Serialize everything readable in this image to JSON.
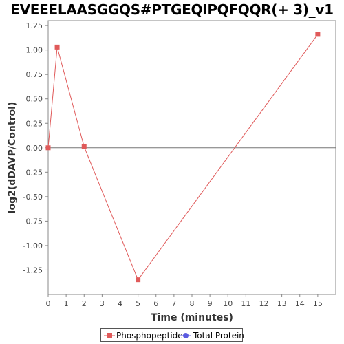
{
  "chart_data": {
    "type": "line",
    "title": "EVEEELAASGGQS#PTGEQIPQFQQR(+ 3)_v1",
    "xlabel": "Time (minutes)",
    "ylabel": "log2(dDAVP/Control)",
    "xlim": [
      0,
      16
    ],
    "ylim": [
      -1.5,
      1.3
    ],
    "x_ticks": [
      "0",
      "1",
      "2",
      "3",
      "4",
      "5",
      "6",
      "7",
      "8",
      "9",
      "10",
      "11",
      "12",
      "13",
      "14",
      "15"
    ],
    "y_ticks": [
      "1.25",
      "1.00",
      "0.75",
      "0.50",
      "0.25",
      "0.00",
      "-0.25",
      "-0.50",
      "-0.75",
      "-1.00",
      "-1.25"
    ],
    "grid": false,
    "zero_line": true,
    "series": [
      {
        "name": "Phosphopeptide",
        "color": "#e05a5a",
        "marker": "square",
        "x": [
          0,
          0.5,
          2,
          5,
          15
        ],
        "y": [
          0.0,
          1.03,
          0.01,
          -1.35,
          1.16
        ]
      },
      {
        "name": "Total Protein",
        "color": "#5a5ae0",
        "marker": "circle",
        "x": [],
        "y": []
      }
    ],
    "legend_position": "bottom-center"
  }
}
